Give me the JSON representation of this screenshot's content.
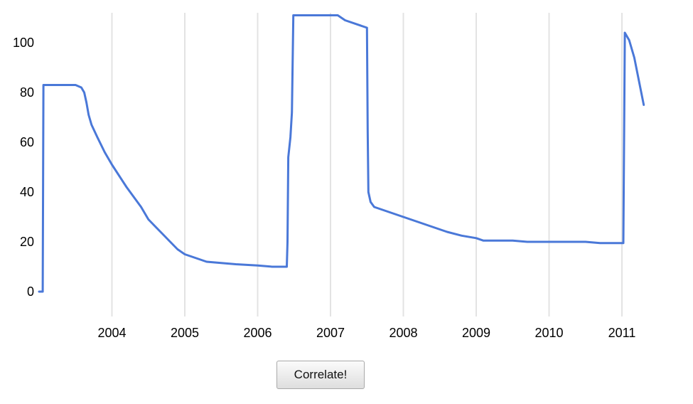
{
  "chart_data": {
    "type": "line",
    "title": "",
    "xlabel": "",
    "ylabel": "",
    "xlim": [
      2003.0,
      2011.3
    ],
    "ylim": [
      -8,
      111
    ],
    "grid": "vertical",
    "legend": "none",
    "x_ticks": [
      "2004",
      "2005",
      "2006",
      "2007",
      "2008",
      "2009",
      "2010",
      "2011"
    ],
    "y_ticks": [
      "0",
      "20",
      "40",
      "60",
      "80",
      "100"
    ],
    "series": [
      {
        "color": "#4a78d8",
        "x": [
          2003.0,
          2003.05,
          2003.06,
          2003.1,
          2003.5,
          2003.58,
          2003.62,
          2003.65,
          2003.68,
          2003.72,
          2003.8,
          2003.9,
          2004.0,
          2004.2,
          2004.4,
          2004.5,
          2004.6,
          2004.7,
          2004.8,
          2004.9,
          2005.0,
          2005.2,
          2005.3,
          2005.5,
          2005.7,
          2006.0,
          2006.2,
          2006.4,
          2006.41,
          2006.42,
          2006.45,
          2006.47,
          2006.49,
          2006.6,
          2006.8,
          2007.1,
          2007.2,
          2007.5,
          2007.51,
          2007.52,
          2007.55,
          2007.6,
          2007.8,
          2008.0,
          2008.2,
          2008.4,
          2008.6,
          2008.8,
          2009.0,
          2009.1,
          2009.5,
          2009.7,
          2010.0,
          2010.2,
          2010.5,
          2010.7,
          2011.0,
          2011.02,
          2011.04,
          2011.1,
          2011.17,
          2011.3
        ],
        "values": [
          0,
          0,
          83,
          83,
          83,
          82,
          80,
          76,
          71,
          67,
          62,
          56,
          51,
          42,
          34,
          29,
          26,
          23,
          20,
          17,
          15,
          13,
          12,
          11.5,
          11,
          10.5,
          10,
          10,
          20,
          54,
          62,
          72,
          111,
          111,
          111,
          111,
          109,
          106,
          65,
          40,
          36,
          34,
          32,
          30,
          28,
          26,
          24,
          22.5,
          21.5,
          20.5,
          20.5,
          20,
          20,
          20,
          20,
          19.5,
          19.5,
          19.5,
          104,
          101,
          94,
          75
        ]
      }
    ]
  },
  "controls": {
    "correlate_label": "Correlate!"
  }
}
